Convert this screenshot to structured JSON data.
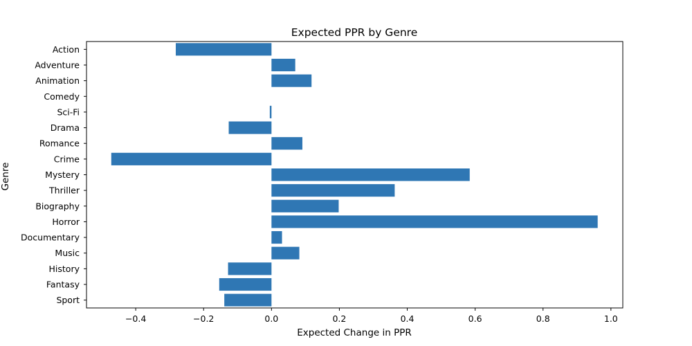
{
  "chart_data": {
    "type": "bar",
    "orientation": "horizontal",
    "title": "Expected PPR by Genre",
    "xlabel": "Expected Change in PPR",
    "ylabel": "Genre",
    "xlim": [
      -0.545,
      1.035
    ],
    "xticks": [
      -0.4,
      -0.2,
      0.0,
      0.2,
      0.4,
      0.6,
      0.8,
      1.0
    ],
    "xtick_labels": [
      "−0.4",
      "−0.2",
      "0.0",
      "0.2",
      "0.4",
      "0.6",
      "0.8",
      "1.0"
    ],
    "categories": [
      "Action",
      "Adventure",
      "Animation",
      "Comedy",
      "Sci-Fi",
      "Drama",
      "Romance",
      "Crime",
      "Mystery",
      "Thriller",
      "Biography",
      "Horror",
      "Documentary",
      "Music",
      "History",
      "Fantasy",
      "Sport"
    ],
    "values": [
      -0.282,
      0.07,
      0.118,
      0.0,
      -0.005,
      -0.126,
      0.091,
      -0.472,
      0.584,
      0.363,
      0.198,
      0.961,
      0.031,
      0.082,
      -0.128,
      -0.154,
      -0.139
    ],
    "bar_color": "#2f77b4",
    "grid": false,
    "legend": "none"
  }
}
